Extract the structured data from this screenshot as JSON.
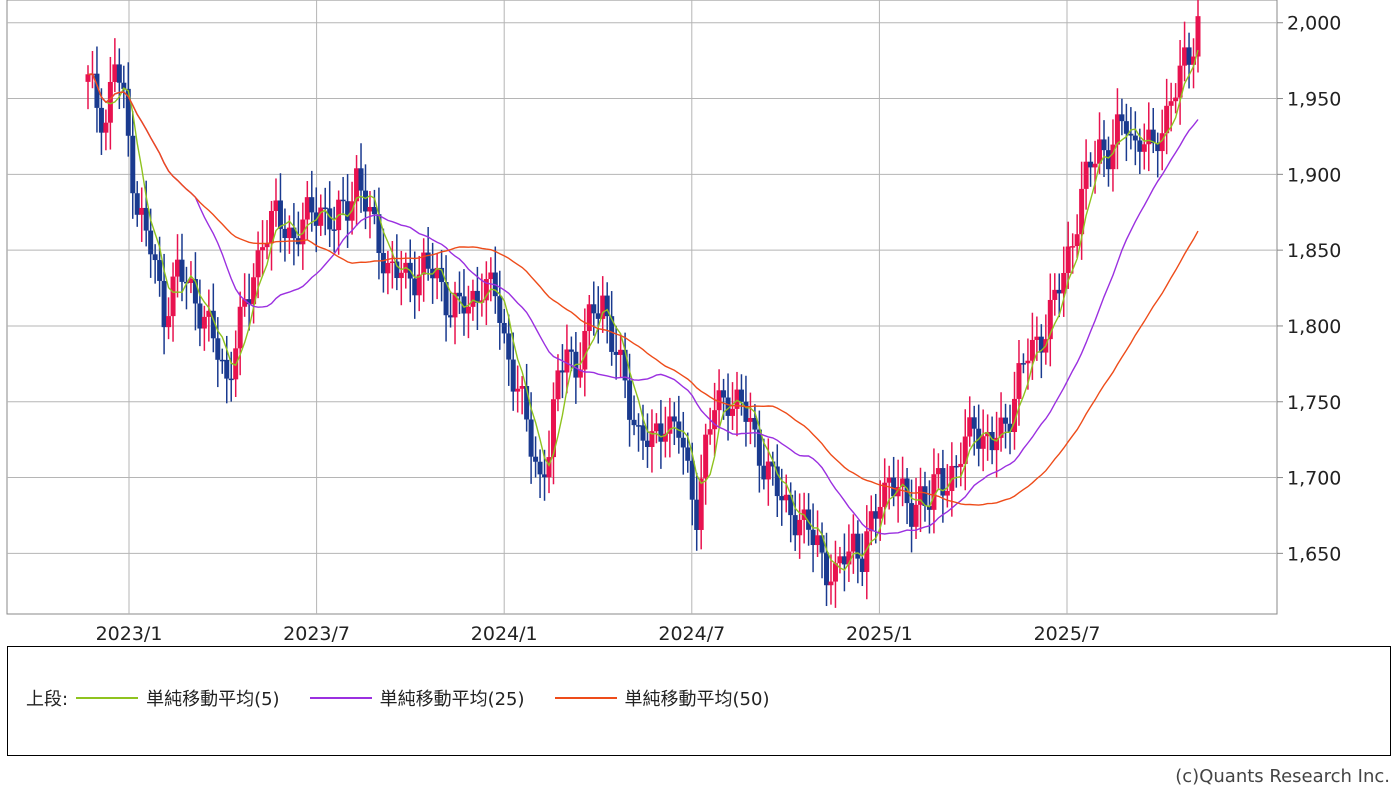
{
  "chart_data": {
    "type": "candlestick",
    "title": "",
    "xlabel": "",
    "ylabel": "",
    "ylim": [
      1610,
      2015
    ],
    "y_ticks": [
      2000,
      1950,
      1900,
      1850,
      1800,
      1750,
      1700,
      1650
    ],
    "y_tick_labels": [
      "2,000",
      "1,950",
      "1,900",
      "1,850",
      "1,800",
      "1,750",
      "1,700",
      "1,650"
    ],
    "x_tick_labels": [
      "2023/1",
      "2023/7",
      "2024/1",
      "2024/7",
      "2025/1",
      "2025/7"
    ],
    "grid": true,
    "candle_colors": {
      "up": "#e8124f",
      "down": "#1a3a8f"
    },
    "series": [
      {
        "name": "単純移動平均(5)",
        "color": "#8fc31f"
      },
      {
        "name": "単純移動平均(25)",
        "color": "#9b30e0"
      },
      {
        "name": "単純移動平均(50)",
        "color": "#ee4c1a"
      }
    ],
    "price_path": [
      [
        0,
        1960
      ],
      [
        4,
        1935
      ],
      [
        6,
        1975
      ],
      [
        8,
        1945
      ],
      [
        11,
        1880
      ],
      [
        14,
        1850
      ],
      [
        17,
        1810
      ],
      [
        20,
        1835
      ],
      [
        24,
        1820
      ],
      [
        28,
        1790
      ],
      [
        31,
        1765
      ],
      [
        33,
        1790
      ],
      [
        36,
        1820
      ],
      [
        39,
        1860
      ],
      [
        42,
        1870
      ],
      [
        46,
        1860
      ],
      [
        49,
        1870
      ],
      [
        52,
        1880
      ],
      [
        55,
        1865
      ],
      [
        58,
        1880
      ],
      [
        60,
        1900
      ],
      [
        63,
        1870
      ],
      [
        67,
        1840
      ],
      [
        71,
        1830
      ],
      [
        75,
        1840
      ],
      [
        78,
        1830
      ],
      [
        81,
        1815
      ],
      [
        85,
        1810
      ],
      [
        88,
        1830
      ],
      [
        91,
        1820
      ],
      [
        93,
        1790
      ],
      [
        96,
        1760
      ],
      [
        99,
        1720
      ],
      [
        101,
        1700
      ],
      [
        103,
        1720
      ],
      [
        105,
        1760
      ],
      [
        107,
        1790
      ],
      [
        109,
        1770
      ],
      [
        111,
        1790
      ],
      [
        113,
        1810
      ],
      [
        115,
        1820
      ],
      [
        117,
        1790
      ],
      [
        120,
        1760
      ],
      [
        123,
        1730
      ],
      [
        126,
        1720
      ],
      [
        129,
        1740
      ],
      [
        132,
        1730
      ],
      [
        134,
        1700
      ],
      [
        136,
        1680
      ],
      [
        138,
        1720
      ],
      [
        140,
        1745
      ],
      [
        143,
        1755
      ],
      [
        146,
        1745
      ],
      [
        148,
        1735
      ],
      [
        151,
        1710
      ],
      [
        154,
        1690
      ],
      [
        157,
        1680
      ],
      [
        160,
        1665
      ],
      [
        163,
        1660
      ],
      [
        165,
        1640
      ],
      [
        167,
        1630
      ],
      [
        169,
        1650
      ],
      [
        171,
        1660
      ],
      [
        173,
        1645
      ],
      [
        175,
        1665
      ],
      [
        177,
        1690
      ],
      [
        179,
        1700
      ],
      [
        182,
        1685
      ],
      [
        184,
        1680
      ],
      [
        186,
        1690
      ],
      [
        188,
        1680
      ],
      [
        190,
        1700
      ],
      [
        192,
        1700
      ],
      [
        194,
        1705
      ],
      [
        196,
        1720
      ],
      [
        198,
        1740
      ],
      [
        200,
        1725
      ],
      [
        202,
        1720
      ],
      [
        204,
        1730
      ],
      [
        206,
        1745
      ],
      [
        208,
        1765
      ],
      [
        210,
        1780
      ],
      [
        212,
        1790
      ],
      [
        214,
        1800
      ],
      [
        216,
        1815
      ],
      [
        218,
        1835
      ],
      [
        220,
        1860
      ],
      [
        222,
        1885
      ],
      [
        224,
        1905
      ],
      [
        226,
        1920
      ],
      [
        228,
        1915
      ],
      [
        230,
        1925
      ],
      [
        232,
        1935
      ],
      [
        234,
        1920
      ],
      [
        236,
        1925
      ],
      [
        238,
        1910
      ],
      [
        240,
        1935
      ],
      [
        242,
        1950
      ],
      [
        244,
        1965
      ],
      [
        246,
        1975
      ],
      [
        248,
        2005
      ]
    ]
  },
  "legend": {
    "label": "上段:",
    "items": [
      "単純移動平均(5)",
      "単純移動平均(25)",
      "単純移動平均(50)"
    ]
  },
  "copyright": "(c)Quants Research Inc."
}
